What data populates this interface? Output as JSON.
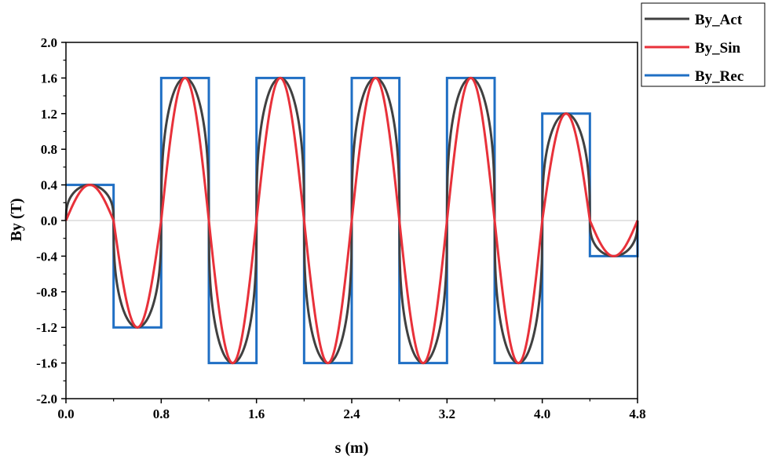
{
  "chart_data": {
    "type": "line",
    "title": "",
    "xlabel": "s (m)",
    "ylabel": "By (T)",
    "xlim": [
      0.0,
      4.8
    ],
    "ylim": [
      -2.0,
      2.0
    ],
    "xticks": [
      "0.0",
      "0.8",
      "1.6",
      "2.4",
      "3.2",
      "4.0",
      "4.8"
    ],
    "yticks": [
      "2.0",
      "1.6",
      "1.2",
      "0.8",
      "0.4",
      "0.0",
      "-0.4",
      "-0.8",
      "-1.2",
      "-1.6",
      "-2.0"
    ],
    "grid": false,
    "zero_line": true,
    "legend_position": "top-right outside",
    "pole_period_m": 0.8,
    "poles": [
      {
        "start": 0.0,
        "end": 0.4,
        "peak": 0.4
      },
      {
        "start": 0.4,
        "end": 0.8,
        "peak": -1.2
      },
      {
        "start": 0.8,
        "end": 1.2,
        "peak": 1.6
      },
      {
        "start": 1.2,
        "end": 1.6,
        "peak": -1.6
      },
      {
        "start": 1.6,
        "end": 2.0,
        "peak": 1.6
      },
      {
        "start": 2.0,
        "end": 2.4,
        "peak": -1.6
      },
      {
        "start": 2.4,
        "end": 2.8,
        "peak": 1.6
      },
      {
        "start": 2.8,
        "end": 3.2,
        "peak": -1.6
      },
      {
        "start": 3.2,
        "end": 3.6,
        "peak": 1.6
      },
      {
        "start": 3.6,
        "end": 4.0,
        "peak": -1.6
      },
      {
        "start": 4.0,
        "end": 4.4,
        "peak": 1.2
      },
      {
        "start": 4.4,
        "end": 4.8,
        "peak": -0.4
      }
    ],
    "series": [
      {
        "name": "By_Act",
        "color": "#404040",
        "shape": "flat-top sinusoid (field-mapped)"
      },
      {
        "name": "By_Sin",
        "color": "#e8313a",
        "shape": "sinusoid, period 0.8 m"
      },
      {
        "name": "By_Rec",
        "color": "#1f6fc4",
        "shape": "rectangular (hard-edge)"
      }
    ]
  }
}
